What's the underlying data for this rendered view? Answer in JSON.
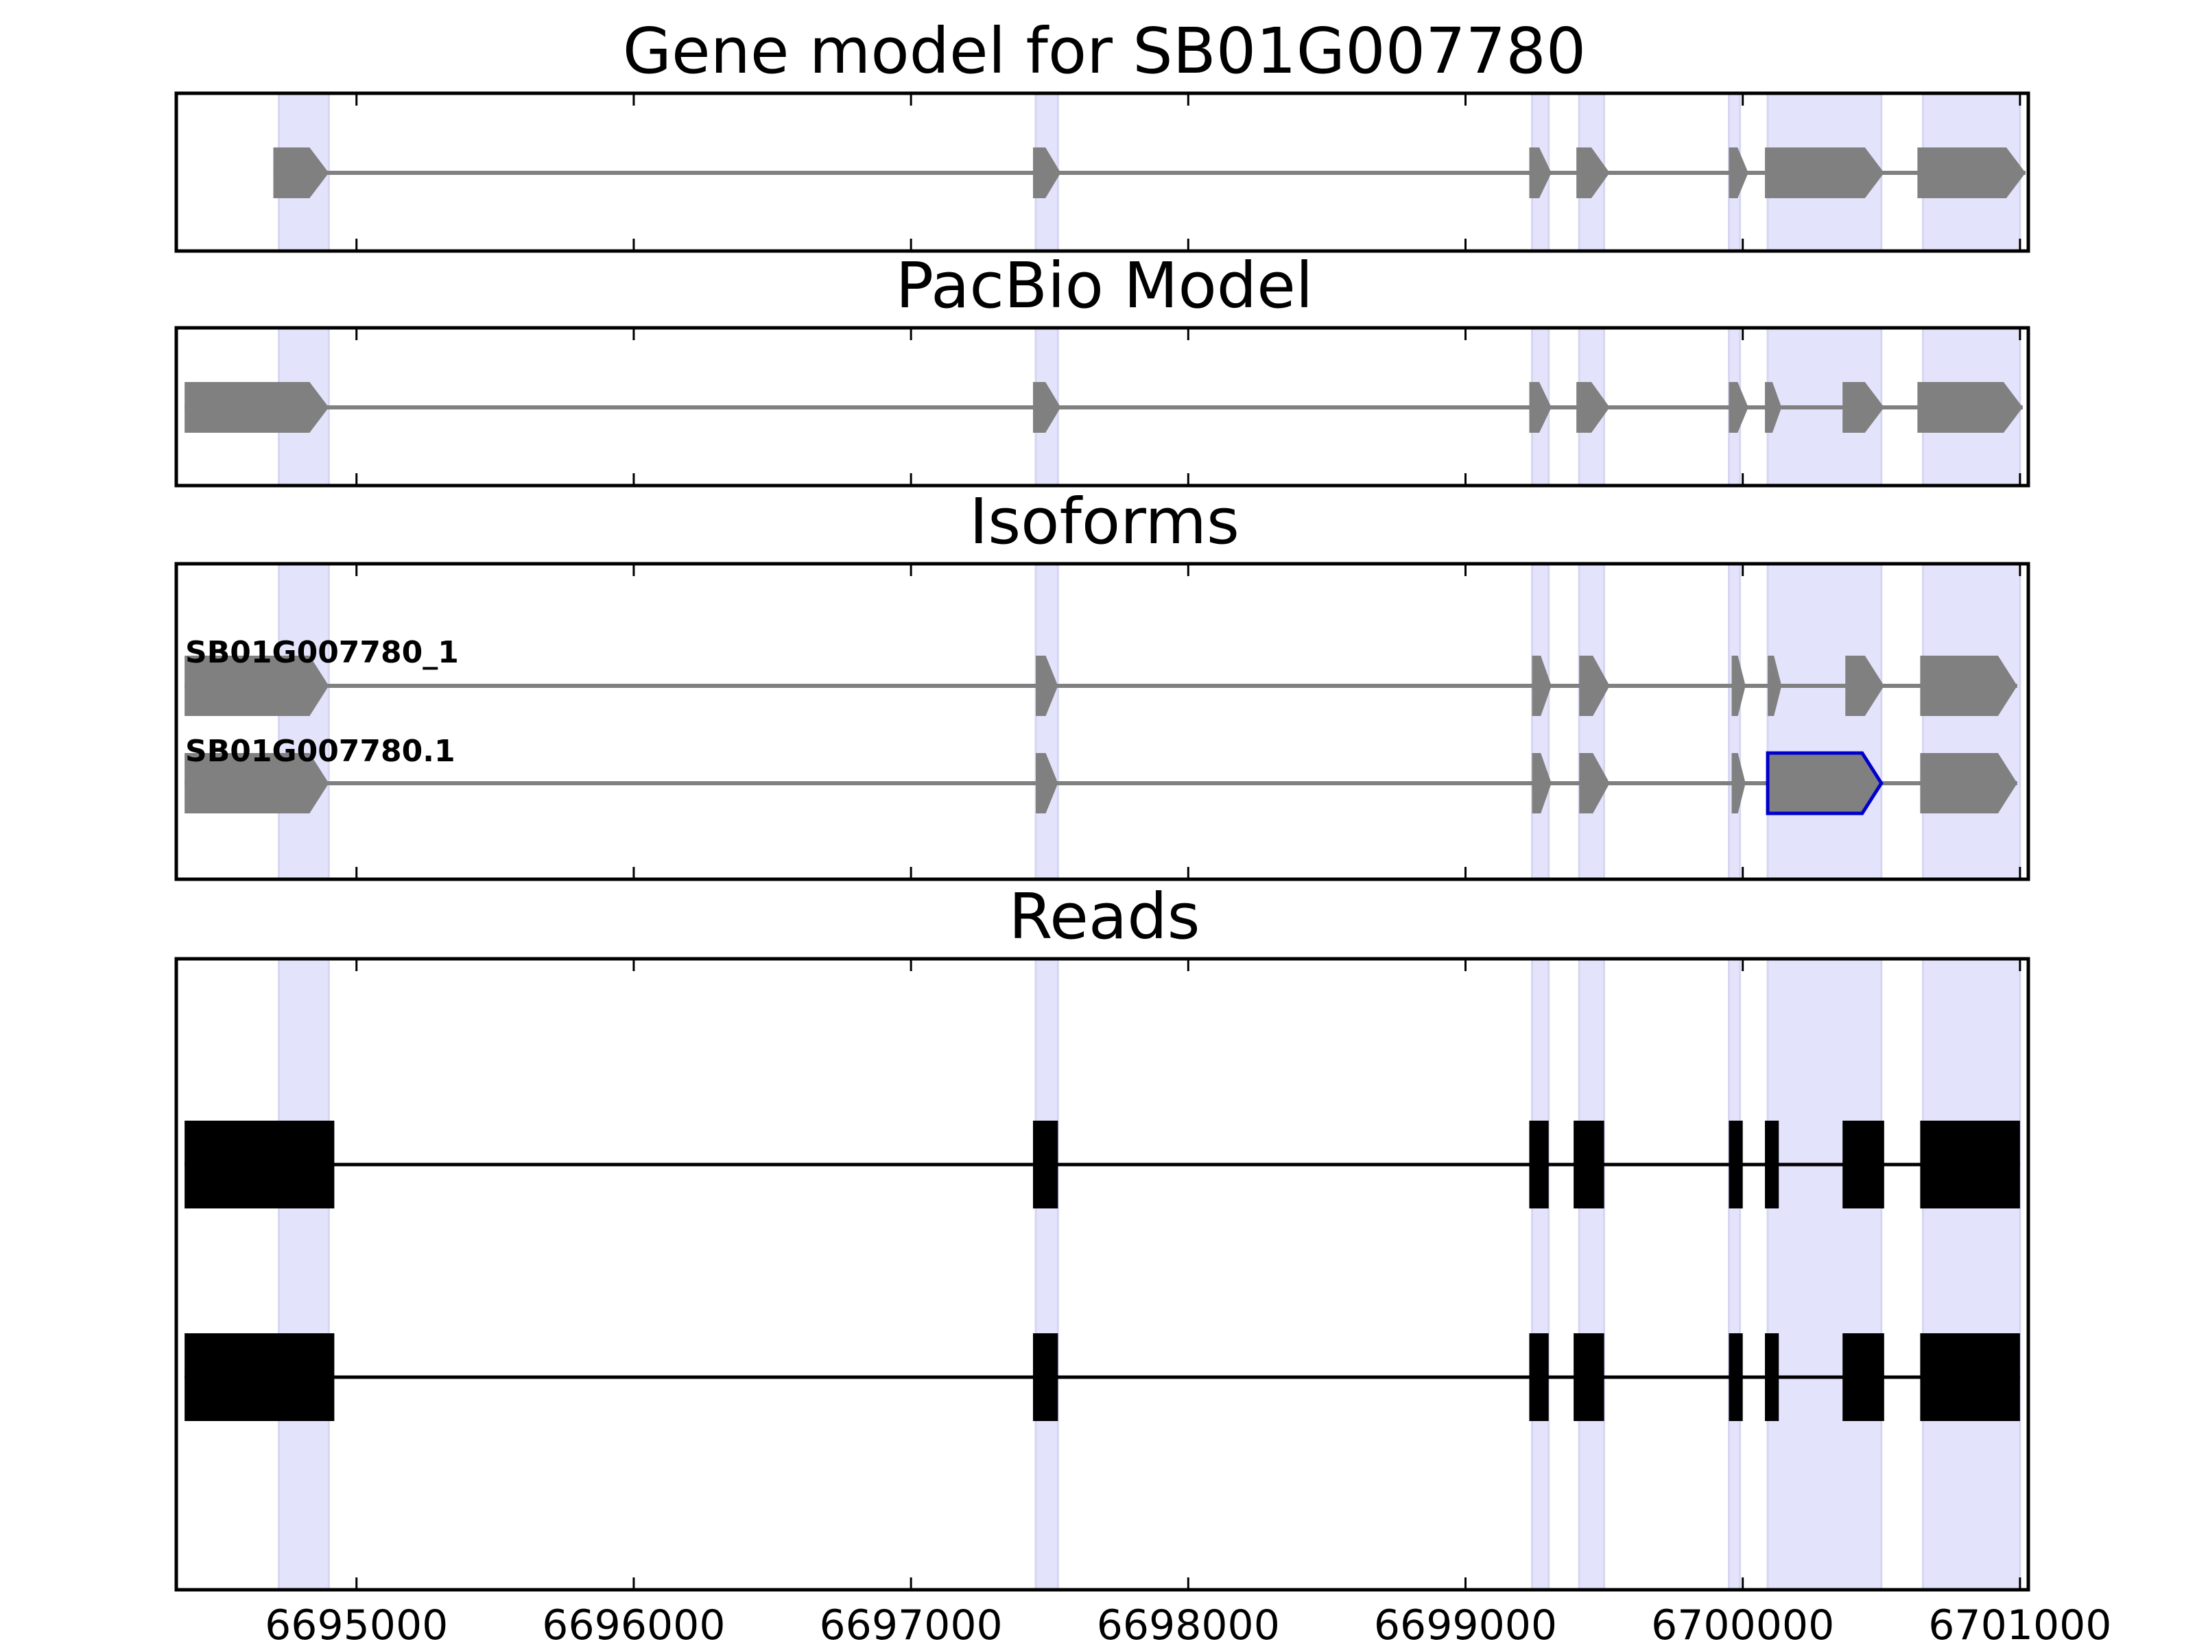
{
  "figure": {
    "panels": [
      {
        "id": "gene_model",
        "title": "Gene model for SB01G007780"
      },
      {
        "id": "pacbio",
        "title": "PacBio Model"
      },
      {
        "id": "isoforms",
        "title": "Isoforms"
      },
      {
        "id": "reads",
        "title": "Reads"
      }
    ],
    "x_ticks": [
      6695000,
      6696000,
      6697000,
      6698000,
      6699000,
      6700000,
      6701000
    ],
    "x_range": [
      6694350,
      6701030
    ]
  },
  "colors": {
    "exon_fill": "#808080",
    "intron_line": "#808080",
    "read_fill": "#000000",
    "highlight_band": "#e3e3fb",
    "highlight_edge": "#d6d6f2",
    "selected_outline": "#0000cc"
  },
  "exon_bands": [
    [
      6694720,
      6694900
    ],
    [
      6697450,
      6697530
    ],
    [
      6699240,
      6699300
    ],
    [
      6699410,
      6699500
    ],
    [
      6699950,
      6699990
    ],
    [
      6700090,
      6700500
    ],
    [
      6700650,
      6701000
    ]
  ],
  "gene_model": {
    "strand": "+",
    "exons": [
      [
        6694700,
        6694900
      ],
      [
        6697440,
        6697540
      ],
      [
        6699230,
        6699310
      ],
      [
        6699400,
        6699520
      ],
      [
        6699950,
        6700020
      ],
      [
        6700080,
        6700510
      ],
      [
        6700630,
        6701020
      ]
    ]
  },
  "pacbio_model": {
    "strand": "+",
    "exons": [
      [
        6694380,
        6694900
      ],
      [
        6697440,
        6697540
      ],
      [
        6699230,
        6699310
      ],
      [
        6699400,
        6699520
      ],
      [
        6699950,
        6700020
      ],
      [
        6700080,
        6700140
      ],
      [
        6700360,
        6700510
      ],
      [
        6700630,
        6701010
      ]
    ]
  },
  "isoforms": [
    {
      "name": "SB01G007780_1",
      "exons": [
        [
          6694380,
          6694900
        ],
        [
          6697450,
          6697530
        ],
        [
          6699240,
          6699310
        ],
        [
          6699410,
          6699520
        ],
        [
          6699960,
          6700010
        ],
        [
          6700090,
          6700140
        ],
        [
          6700370,
          6700510
        ],
        [
          6700640,
          6700990
        ]
      ],
      "selected_exon": -1
    },
    {
      "name": "SB01G007780.1",
      "exons": [
        [
          6694380,
          6694900
        ],
        [
          6697450,
          6697530
        ],
        [
          6699240,
          6699310
        ],
        [
          6699410,
          6699520
        ],
        [
          6699960,
          6700010
        ],
        [
          6700090,
          6700500
        ],
        [
          6700640,
          6700990
        ]
      ],
      "selected_exon": 5
    }
  ],
  "reads": [
    {
      "exons": [
        [
          6694380,
          6694920
        ],
        [
          6697440,
          6697530
        ],
        [
          6699230,
          6699300
        ],
        [
          6699390,
          6699500
        ],
        [
          6699950,
          6700000
        ],
        [
          6700080,
          6700130
        ],
        [
          6700360,
          6700510
        ],
        [
          6700640,
          6701000
        ]
      ]
    },
    {
      "exons": [
        [
          6694380,
          6694920
        ],
        [
          6697440,
          6697530
        ],
        [
          6699230,
          6699300
        ],
        [
          6699390,
          6699500
        ],
        [
          6699950,
          6700000
        ],
        [
          6700080,
          6700130
        ],
        [
          6700360,
          6700510
        ],
        [
          6700640,
          6701000
        ]
      ]
    }
  ]
}
